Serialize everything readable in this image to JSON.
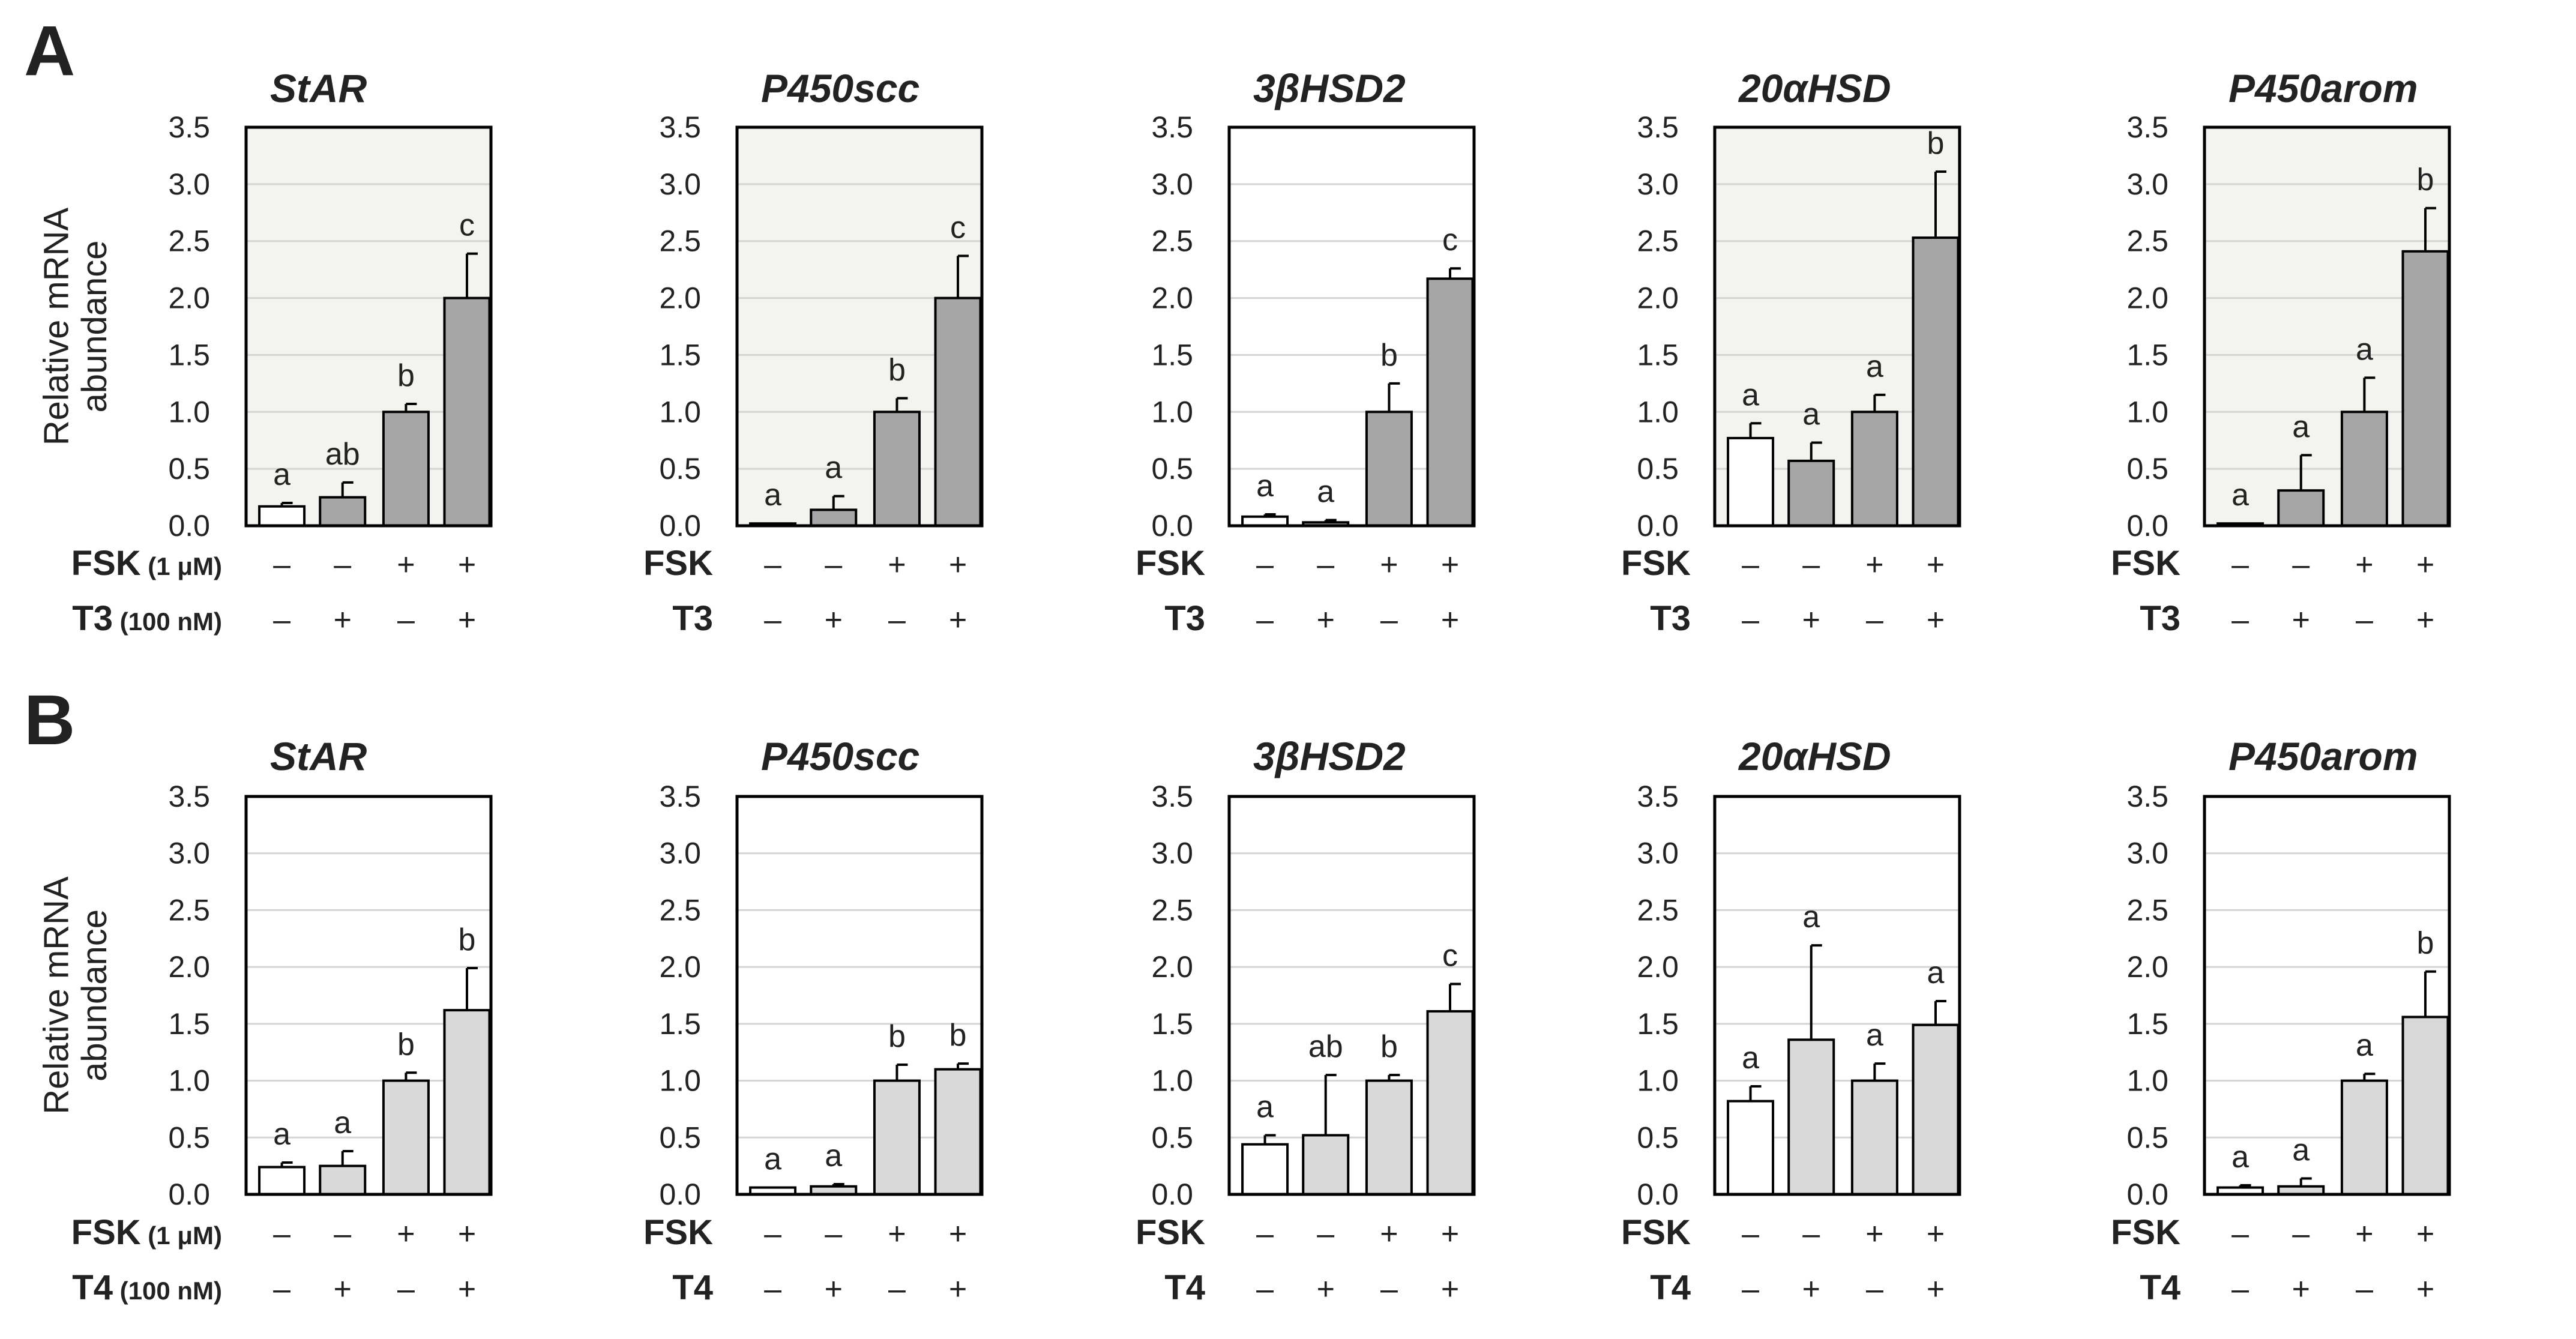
{
  "figure": {
    "rows": [
      {
        "label": "A",
        "ylabel_lines": [
          "Relative mRNA",
          "abundance"
        ],
        "fsk_label_first": "FSK",
        "fsk_conc": "(1 μM)",
        "fsk_label": "FSK",
        "hormone_label": "T3",
        "hormone_conc": "(100 nM)",
        "fsk_signs": [
          "–",
          "–",
          "+",
          "+"
        ],
        "hormone_signs": [
          "–",
          "+",
          "–",
          "+"
        ]
      },
      {
        "label": "B",
        "ylabel_lines": [
          "Relative mRNA",
          "abundance"
        ],
        "fsk_label_first": "FSK",
        "fsk_conc": "(1 μM)",
        "fsk_label": "FSK",
        "hormone_label": "T4",
        "hormone_conc": "(100 nM)",
        "fsk_signs": [
          "–",
          "–",
          "+",
          "+"
        ],
        "hormone_signs": [
          "–",
          "+",
          "–",
          "+"
        ]
      }
    ]
  },
  "chart_data": [
    {
      "type": "bar",
      "row": "A",
      "title": "StAR",
      "shaded": true,
      "ylim": [
        0,
        3.5
      ],
      "yticks": [
        "0.0",
        "0.5",
        "1.0",
        "1.5",
        "2.0",
        "2.5",
        "3.0",
        "3.5"
      ],
      "values": [
        0.17,
        0.25,
        1.0,
        2.0
      ],
      "errors": [
        0.03,
        0.13,
        0.07,
        0.39
      ],
      "letters": [
        "a",
        "ab",
        "b",
        "c"
      ],
      "bar_colors": [
        "#ffffff",
        "#a6a6a6",
        "#a6a6a6",
        "#a6a6a6"
      ]
    },
    {
      "type": "bar",
      "row": "A",
      "title": "P450scc",
      "shaded": true,
      "ylim": [
        0,
        3.5
      ],
      "yticks": [
        "0.0",
        "0.5",
        "1.0",
        "1.5",
        "2.0",
        "2.5",
        "3.0",
        "3.5"
      ],
      "values": [
        0.02,
        0.14,
        1.0,
        2.0
      ],
      "errors": [
        0.0,
        0.12,
        0.12,
        0.37
      ],
      "letters": [
        "a",
        "a",
        "b",
        "c"
      ],
      "bar_colors": [
        "#ffffff",
        "#a6a6a6",
        "#a6a6a6",
        "#a6a6a6"
      ]
    },
    {
      "type": "bar",
      "row": "A",
      "title": "3βHSD2",
      "shaded": false,
      "ylim": [
        0,
        3.5
      ],
      "yticks": [
        "0.0",
        "0.5",
        "1.0",
        "1.5",
        "2.0",
        "2.5",
        "3.0",
        "3.5"
      ],
      "values": [
        0.08,
        0.03,
        1.0,
        2.17
      ],
      "errors": [
        0.02,
        0.02,
        0.25,
        0.09
      ],
      "letters": [
        "a",
        "a",
        "b",
        "c"
      ],
      "bar_colors": [
        "#ffffff",
        "#a6a6a6",
        "#a6a6a6",
        "#a6a6a6"
      ]
    },
    {
      "type": "bar",
      "row": "A",
      "title": "20αHSD",
      "shaded": true,
      "ylim": [
        0,
        3.5
      ],
      "yticks": [
        "0.0",
        "0.5",
        "1.0",
        "1.5",
        "2.0",
        "2.5",
        "3.0",
        "3.5"
      ],
      "values": [
        0.77,
        0.57,
        1.0,
        2.53
      ],
      "errors": [
        0.13,
        0.16,
        0.15,
        0.58
      ],
      "letters": [
        "a",
        "a",
        "a",
        "b"
      ],
      "bar_colors": [
        "#ffffff",
        "#a6a6a6",
        "#a6a6a6",
        "#a6a6a6"
      ]
    },
    {
      "type": "bar",
      "row": "A",
      "title": "P450arom",
      "shaded": true,
      "ylim": [
        0,
        3.5
      ],
      "yticks": [
        "0.0",
        "0.5",
        "1.0",
        "1.5",
        "2.0",
        "2.5",
        "3.0",
        "3.5"
      ],
      "values": [
        0.02,
        0.31,
        1.0,
        2.41
      ],
      "errors": [
        0.0,
        0.31,
        0.3,
        0.38
      ],
      "letters": [
        "a",
        "a",
        "a",
        "b"
      ],
      "bar_colors": [
        "#ffffff",
        "#a6a6a6",
        "#a6a6a6",
        "#a6a6a6"
      ]
    },
    {
      "type": "bar",
      "row": "B",
      "title": "StAR",
      "shaded": false,
      "ylim": [
        0,
        3.5
      ],
      "yticks": [
        "0.0",
        "0.5",
        "1.0",
        "1.5",
        "2.0",
        "2.5",
        "3.0",
        "3.5"
      ],
      "values": [
        0.24,
        0.25,
        1.0,
        1.62
      ],
      "errors": [
        0.04,
        0.13,
        0.07,
        0.37
      ],
      "letters": [
        "a",
        "a",
        "b",
        "b"
      ],
      "bar_colors": [
        "#ffffff",
        "#d9d9d9",
        "#d9d9d9",
        "#d9d9d9"
      ]
    },
    {
      "type": "bar",
      "row": "B",
      "title": "P450scc",
      "shaded": false,
      "ylim": [
        0,
        3.5
      ],
      "yticks": [
        "0.0",
        "0.5",
        "1.0",
        "1.5",
        "2.0",
        "2.5",
        "3.0",
        "3.5"
      ],
      "values": [
        0.06,
        0.07,
        1.0,
        1.1
      ],
      "errors": [
        0.0,
        0.02,
        0.14,
        0.05
      ],
      "letters": [
        "a",
        "a",
        "b",
        "b"
      ],
      "bar_colors": [
        "#ffffff",
        "#d9d9d9",
        "#d9d9d9",
        "#d9d9d9"
      ]
    },
    {
      "type": "bar",
      "row": "B",
      "title": "3βHSD2",
      "shaded": false,
      "ylim": [
        0,
        3.5
      ],
      "yticks": [
        "0.0",
        "0.5",
        "1.0",
        "1.5",
        "2.0",
        "2.5",
        "3.0",
        "3.5"
      ],
      "values": [
        0.44,
        0.52,
        1.0,
        1.61
      ],
      "errors": [
        0.08,
        0.53,
        0.05,
        0.24
      ],
      "letters": [
        "a",
        "ab",
        "b",
        "c"
      ],
      "bar_colors": [
        "#ffffff",
        "#d9d9d9",
        "#d9d9d9",
        "#d9d9d9"
      ]
    },
    {
      "type": "bar",
      "row": "B",
      "title": "20αHSD",
      "shaded": false,
      "ylim": [
        0,
        3.5
      ],
      "yticks": [
        "0.0",
        "0.5",
        "1.0",
        "1.5",
        "2.0",
        "2.5",
        "3.0",
        "3.5"
      ],
      "values": [
        0.82,
        1.36,
        1.0,
        1.49
      ],
      "errors": [
        0.13,
        0.83,
        0.15,
        0.21
      ],
      "letters": [
        "a",
        "a",
        "a",
        "a"
      ],
      "bar_colors": [
        "#ffffff",
        "#d9d9d9",
        "#d9d9d9",
        "#d9d9d9"
      ]
    },
    {
      "type": "bar",
      "row": "B",
      "title": "P450arom",
      "shaded": false,
      "ylim": [
        0,
        3.5
      ],
      "yticks": [
        "0.0",
        "0.5",
        "1.0",
        "1.5",
        "2.0",
        "2.5",
        "3.0",
        "3.5"
      ],
      "values": [
        0.06,
        0.07,
        1.0,
        1.56
      ],
      "errors": [
        0.02,
        0.07,
        0.06,
        0.4
      ],
      "letters": [
        "a",
        "a",
        "a",
        "b"
      ],
      "bar_colors": [
        "#ffffff",
        "#d9d9d9",
        "#d9d9d9",
        "#d9d9d9"
      ]
    }
  ]
}
